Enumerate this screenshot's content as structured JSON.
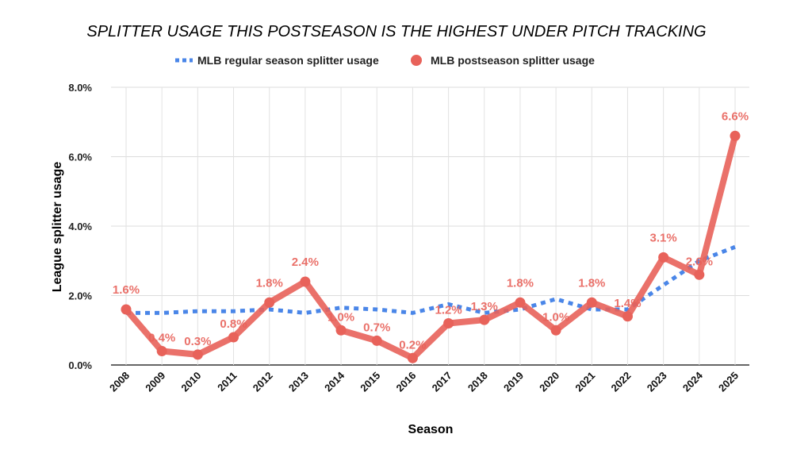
{
  "chart_data": {
    "type": "line",
    "title": "SPLITTER USAGE THIS POSTSEASON IS THE HIGHEST UNDER PITCH TRACKING",
    "xlabel": "Season",
    "ylabel": "League splitter usage",
    "ylim": [
      0,
      8
    ],
    "yticks": [
      "0.0%",
      "2.0%",
      "4.0%",
      "6.0%",
      "8.0%"
    ],
    "grid": true,
    "legend_placement": "top",
    "categories": [
      "2008",
      "2009",
      "2010",
      "2011",
      "2012",
      "2013",
      "2014",
      "2015",
      "2016",
      "2017",
      "2018",
      "2019",
      "2020",
      "2021",
      "2022",
      "2023",
      "2024",
      "2025"
    ],
    "series": [
      {
        "name": "MLB regular season splitter usage",
        "color": "#4a86e8",
        "style": "dotted",
        "values": [
          1.5,
          1.5,
          1.55,
          1.55,
          1.6,
          1.5,
          1.65,
          1.6,
          1.5,
          1.75,
          1.5,
          1.6,
          1.9,
          1.6,
          1.6,
          2.3,
          3.0,
          3.4
        ]
      },
      {
        "name": "MLB postseason splitter usage",
        "color": "#e8625a",
        "style": "solid-markers",
        "values": [
          1.6,
          0.4,
          0.3,
          0.8,
          1.8,
          2.4,
          1.0,
          0.7,
          0.2,
          1.2,
          1.3,
          1.8,
          1.0,
          1.8,
          1.4,
          3.1,
          2.6,
          6.6
        ],
        "labels": [
          "1.6%",
          "0.4%",
          "0.3%",
          "0.8%",
          "1.8%",
          "2.4%",
          "1.0%",
          "0.7%",
          "0.2%",
          "1.2%",
          "1.3%",
          "1.8%",
          "1.0%",
          "1.8%",
          "1.4%",
          "3.1%",
          "2.6%",
          "6.6%"
        ]
      }
    ]
  }
}
